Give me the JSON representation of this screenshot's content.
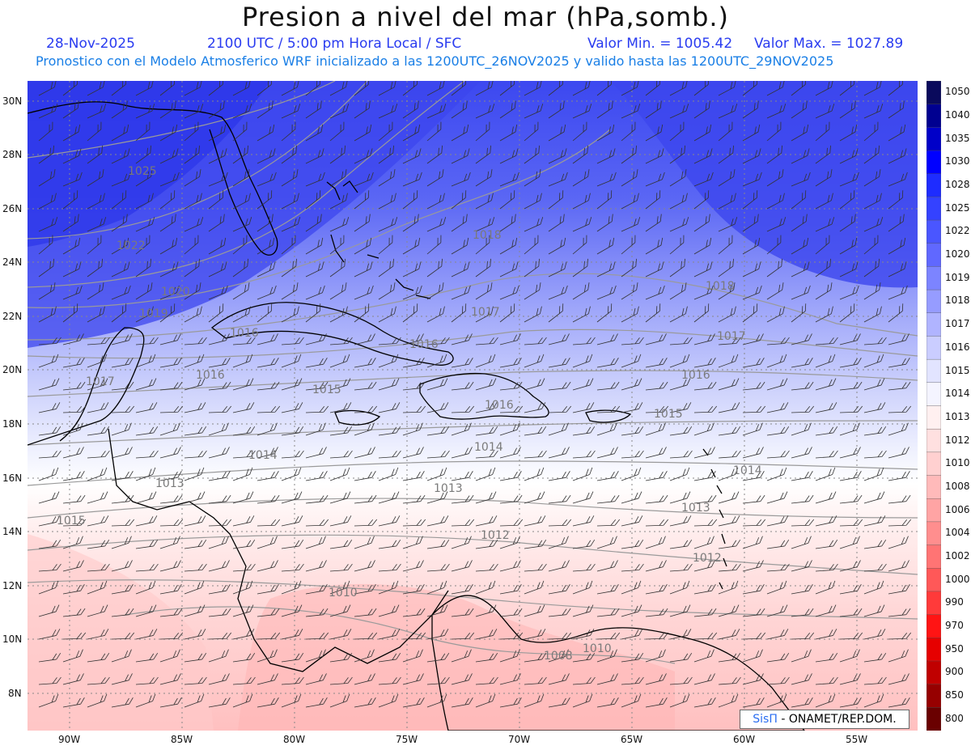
{
  "title": "Presion a nivel del mar (hPa,somb.)",
  "date": "28-Nov-2025",
  "time": "2100 UTC / 5:00 pm Hora Local / SFC",
  "min_value": "Valor Min. = 1005.42",
  "max_value": "Valor Max. = 1027.89",
  "forecast_note": "Pronostico con el Modelo Atmosferico WRF inicializado a las 1200UTC_26NOV2025 y valido hasta las  1200UTC_29NOV2025",
  "latitudes": [
    "30N",
    "28N",
    "26N",
    "24N",
    "22N",
    "20N",
    "18N",
    "16N",
    "14N",
    "12N",
    "10N",
    "8N"
  ],
  "longitudes": [
    "90W",
    "85W",
    "80W",
    "75W",
    "70W",
    "65W",
    "60W",
    "55W"
  ],
  "colorbar_labels": [
    "1050",
    "1040",
    "1035",
    "1030",
    "1028",
    "1025",
    "1022",
    "1020",
    "1019",
    "1018",
    "1017",
    "1016",
    "1015",
    "1014",
    "1013",
    "1012",
    "1010",
    "1008",
    "1006",
    "1004",
    "1002",
    "1000",
    "990",
    "970",
    "950",
    "900",
    "850",
    "800"
  ],
  "colorbar_colors": [
    "#0a0a5c",
    "#000090",
    "#0000c8",
    "#0000ff",
    "#1e2cff",
    "#3442ff",
    "#4a56ff",
    "#6068ff",
    "#7c84ff",
    "#969cff",
    "#b0b4ff",
    "#cacdff",
    "#e2e4ff",
    "#f4f4ff",
    "#fff0f0",
    "#ffe0e0",
    "#ffd0d0",
    "#ffbaba",
    "#ffa4a4",
    "#ff8e8e",
    "#ff7474",
    "#ff5858",
    "#ff3a3a",
    "#ff1414",
    "#e60000",
    "#c00000",
    "#960000",
    "#6a0000"
  ],
  "isobar_labels": [
    "1025",
    "1022",
    "1020",
    "1019",
    "1018",
    "1018",
    "1017",
    "1017",
    "1016",
    "1016",
    "1016",
    "1016",
    "1015",
    "1015",
    "1014",
    "1014",
    "1014",
    "1013",
    "1013",
    "1013",
    "1012",
    "1012",
    "1010",
    "1010",
    "1008",
    "1017",
    "1016",
    "1015"
  ],
  "credit": {
    "brand": "SisΠ",
    "text": " - ONAMET/REP.DOM."
  }
}
